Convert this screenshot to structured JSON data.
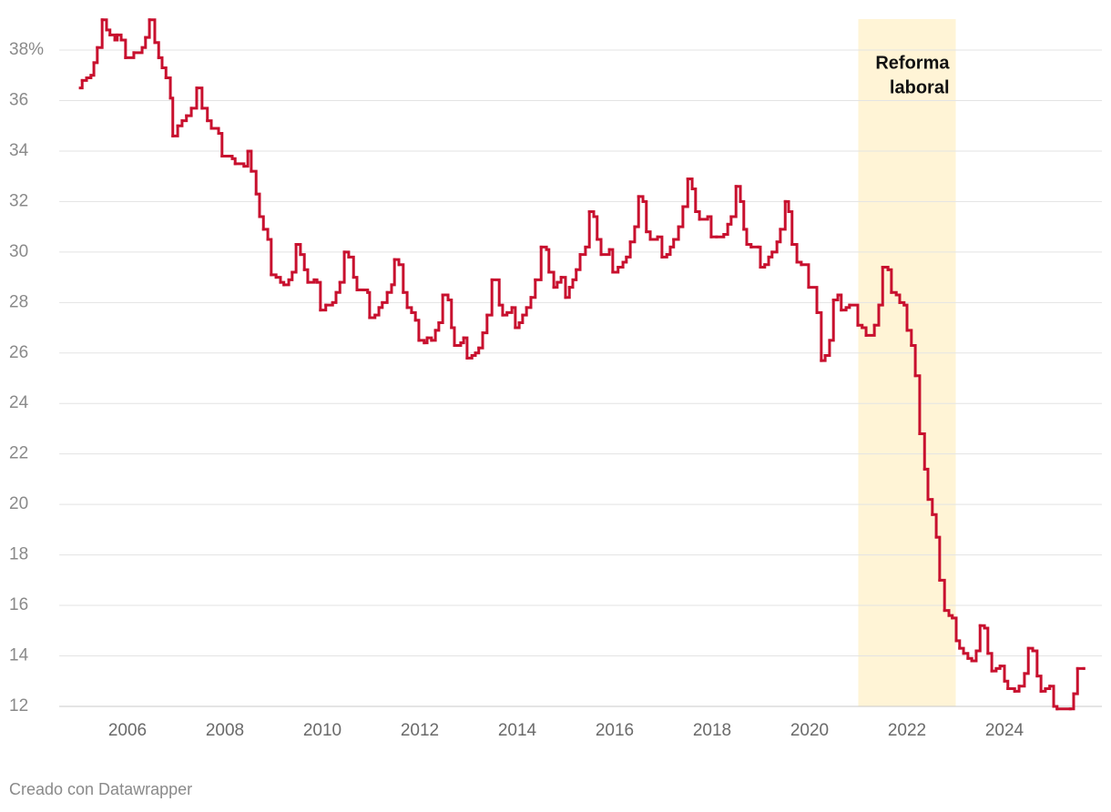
{
  "chart_data": {
    "type": "step-line",
    "series": [
      {
        "color": "#c8102e",
        "values": [
          36.5,
          36.8,
          36.9,
          37.0,
          37.5,
          38.1,
          39.2,
          38.8,
          38.6,
          38.4,
          38.6,
          38.4,
          37.7,
          37.9,
          38.1,
          38.5,
          39.2,
          38.3,
          37.7,
          37.3,
          36.9,
          36.1,
          34.6,
          35.0,
          35.2,
          35.4,
          35.7,
          36.5,
          35.7,
          35.2,
          34.9,
          34.7,
          33.8,
          33.7,
          33.5,
          33.4,
          34.0,
          33.2,
          32.3,
          31.4,
          30.9,
          30.5,
          29.1,
          29.0,
          28.8,
          28.7,
          28.9,
          29.2,
          30.3,
          29.9,
          29.3,
          28.8,
          28.9,
          28.8,
          27.7,
          27.9,
          28.0,
          28.4,
          28.8,
          30.0,
          29.8,
          29.0,
          28.5,
          28.5,
          28.4,
          27.4,
          27.5,
          27.8,
          28.0,
          28.4,
          28.7,
          29.7,
          29.5,
          28.4,
          27.8,
          27.6,
          27.3,
          26.5,
          26.4,
          26.6,
          26.5,
          26.9,
          27.2,
          28.3,
          28.1,
          27.0,
          26.3,
          26.4,
          26.6,
          25.8,
          25.9,
          26.0,
          26.2,
          26.8,
          27.5,
          28.9,
          27.9,
          27.5,
          27.6,
          27.8,
          27.0,
          27.2,
          27.5,
          27.8,
          28.2,
          28.9,
          30.2,
          30.1,
          29.2,
          28.6,
          28.8,
          29.0,
          28.2,
          28.6,
          28.9,
          29.3,
          29.9,
          30.2,
          31.6,
          31.4,
          30.5,
          29.9,
          30.1,
          29.2,
          29.4,
          29.6,
          29.8,
          30.4,
          31.0,
          32.2,
          32.0,
          30.8,
          30.5,
          30.6,
          29.8,
          29.9,
          30.2,
          30.5,
          31.0,
          31.8,
          32.9,
          32.5,
          31.6,
          31.3,
          31.4,
          30.6,
          30.6,
          30.7,
          31.1,
          31.4,
          32.6,
          32.0,
          30.9,
          30.3,
          30.2,
          30.2,
          29.4,
          29.5,
          29.8,
          30.0,
          30.4,
          30.9,
          32.0,
          31.6,
          30.3,
          29.6,
          29.5,
          28.6,
          27.6,
          25.7,
          25.9,
          26.5,
          28.1,
          28.3,
          27.7,
          27.8,
          27.9,
          27.1,
          27.0,
          26.7,
          27.1,
          27.9,
          29.4,
          29.3,
          28.4,
          28.3,
          28.0,
          27.9,
          26.9,
          26.3,
          25.1,
          22.8,
          21.4,
          20.2,
          19.6,
          18.7,
          17.0,
          15.8,
          15.6,
          15.5,
          14.6,
          14.3,
          14.1,
          13.9,
          13.8,
          14.2,
          15.2,
          15.1,
          14.1,
          13.4,
          13.5,
          13.6,
          13.0,
          12.7,
          12.6,
          12.8,
          13.3,
          14.3,
          14.2,
          13.2,
          12.6,
          12.7,
          12.8,
          12.0,
          11.9,
          11.9,
          12.5,
          13.5,
          13.5
        ]
      }
    ],
    "x": [
      2005.03,
      2005.07,
      2005.16,
      2005.25,
      2005.31,
      2005.38,
      2005.48,
      2005.57,
      2005.64,
      2005.74,
      2005.79,
      2005.87,
      2005.96,
      2006.13,
      2006.3,
      2006.37,
      2006.45,
      2006.56,
      2006.64,
      2006.71,
      2006.79,
      2006.88,
      2006.93,
      2007.03,
      2007.12,
      2007.21,
      2007.31,
      2007.42,
      2007.53,
      2007.64,
      2007.72,
      2007.87,
      2007.94,
      2008.15,
      2008.21,
      2008.39,
      2008.47,
      2008.54,
      2008.64,
      2008.71,
      2008.79,
      2008.88,
      2008.95,
      2009.05,
      2009.14,
      2009.21,
      2009.31,
      2009.38,
      2009.46,
      2009.55,
      2009.63,
      2009.7,
      2009.83,
      2009.89,
      2009.96,
      2010.07,
      2010.21,
      2010.28,
      2010.36,
      2010.45,
      2010.54,
      2010.64,
      2010.71,
      2010.84,
      2010.93,
      2010.97,
      2011.08,
      2011.16,
      2011.23,
      2011.33,
      2011.42,
      2011.48,
      2011.57,
      2011.66,
      2011.74,
      2011.83,
      2011.91,
      2011.98,
      2012.09,
      2012.15,
      2012.24,
      2012.32,
      2012.39,
      2012.47,
      2012.58,
      2012.65,
      2012.71,
      2012.84,
      2012.9,
      2012.97,
      2013.07,
      2013.14,
      2013.21,
      2013.29,
      2013.38,
      2013.48,
      2013.63,
      2013.7,
      2013.79,
      2013.89,
      2013.96,
      2014.04,
      2014.11,
      2014.19,
      2014.28,
      2014.37,
      2014.49,
      2014.6,
      2014.65,
      2014.75,
      2014.82,
      2014.9,
      2014.99,
      2015.07,
      2015.14,
      2015.21,
      2015.29,
      2015.4,
      2015.48,
      2015.57,
      2015.64,
      2015.72,
      2015.89,
      2015.96,
      2016.07,
      2016.17,
      2016.24,
      2016.32,
      2016.41,
      2016.49,
      2016.58,
      2016.65,
      2016.73,
      2016.88,
      2016.97,
      2017.07,
      2017.14,
      2017.21,
      2017.31,
      2017.4,
      2017.5,
      2017.59,
      2017.66,
      2017.74,
      2017.91,
      2017.98,
      2018.09,
      2018.24,
      2018.32,
      2018.39,
      2018.49,
      2018.58,
      2018.65,
      2018.71,
      2018.8,
      2018.95,
      2018.99,
      2019.08,
      2019.16,
      2019.23,
      2019.33,
      2019.4,
      2019.5,
      2019.57,
      2019.64,
      2019.74,
      2019.83,
      2019.98,
      2020.15,
      2020.24,
      2020.32,
      2020.41,
      2020.49,
      2020.58,
      2020.65,
      2020.75,
      2020.82,
      2020.99,
      2021.08,
      2021.16,
      2021.33,
      2021.42,
      2021.5,
      2021.61,
      2021.68,
      2021.78,
      2021.85,
      2021.94,
      2022.0,
      2022.09,
      2022.17,
      2022.26,
      2022.36,
      2022.43,
      2022.52,
      2022.6,
      2022.67,
      2022.77,
      2022.86,
      2022.93,
      2023.01,
      2023.08,
      2023.16,
      2023.25,
      2023.33,
      2023.42,
      2023.5,
      2023.59,
      2023.66,
      2023.74,
      2023.83,
      2023.91,
      2024.0,
      2024.07,
      2024.21,
      2024.3,
      2024.41,
      2024.49,
      2024.58,
      2024.67,
      2024.75,
      2024.84,
      2024.93,
      2025.01,
      2025.08,
      2025.35,
      2025.42,
      2025.5,
      2025.63
    ],
    "xlim": [
      2004.6,
      2026
    ],
    "xticks": [
      2006,
      2008,
      2010,
      2012,
      2014,
      2016,
      2018,
      2020,
      2022,
      2024
    ],
    "ylim": [
      11.8,
      39.3
    ],
    "yticks": [
      12,
      14,
      16,
      18,
      20,
      22,
      24,
      26,
      28,
      30,
      32,
      34,
      36,
      {
        "value": 38,
        "label": "38%"
      }
    ],
    "grid": true,
    "highlight": {
      "range": [
        2021,
        2023
      ],
      "color": "#fff4d6",
      "label": [
        "Reforma",
        "laboral"
      ]
    }
  },
  "credit": "Creado con Datawrapper"
}
